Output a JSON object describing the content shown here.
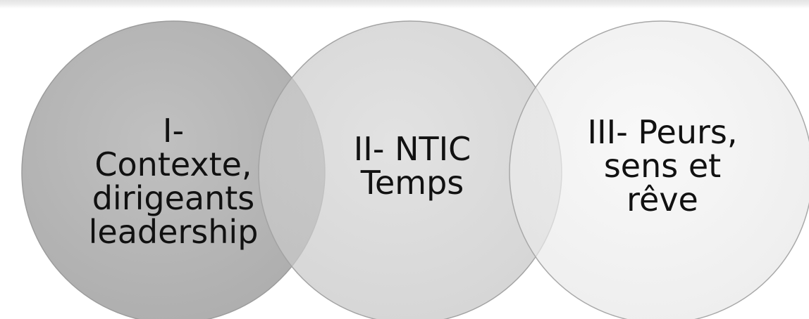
{
  "diagram": {
    "circles": [
      {
        "lines": [
          "I-",
          "Contexte,",
          "dirigeants",
          "leadership"
        ],
        "fill": "#b3b3b3"
      },
      {
        "lines": [
          "II- NTIC",
          "Temps"
        ],
        "fill": "#cfcfcf"
      },
      {
        "lines": [
          "III- Peurs,",
          "sens et",
          "rêve"
        ],
        "fill": "#efefef"
      }
    ],
    "colors": {
      "stroke": "#9c9c9c",
      "text": "#111111"
    }
  }
}
